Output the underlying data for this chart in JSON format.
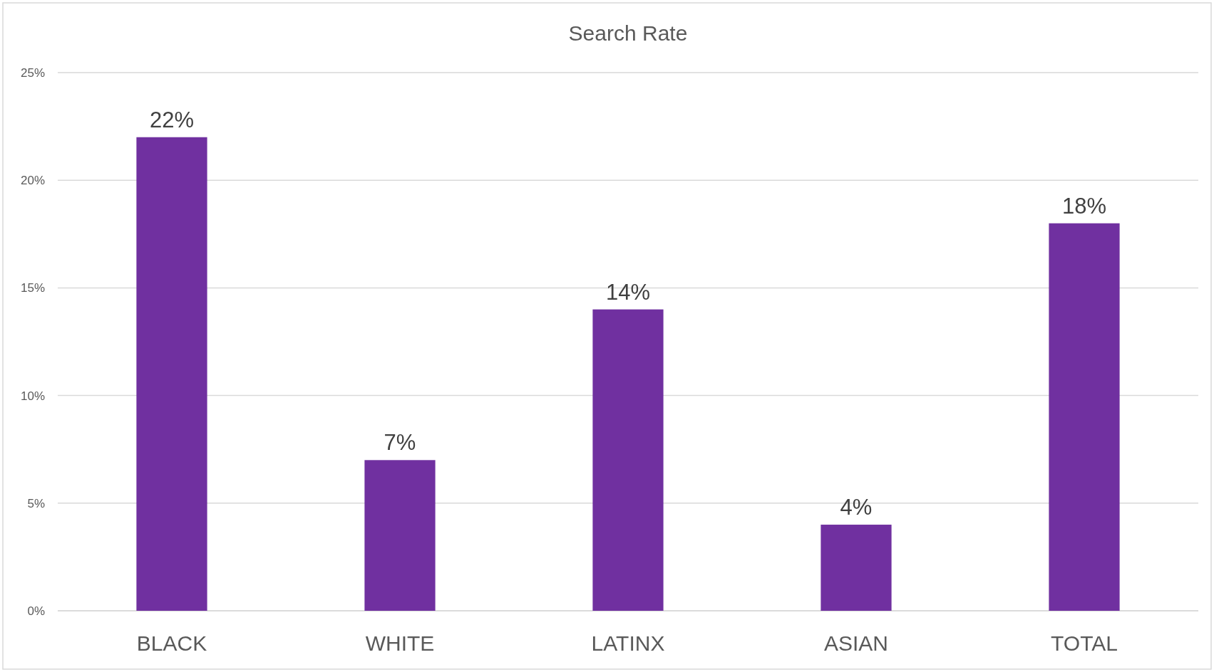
{
  "chart_data": {
    "type": "bar",
    "title": "Search Rate",
    "categories": [
      "BLACK",
      "WHITE",
      "LATINX",
      "ASIAN",
      "TOTAL"
    ],
    "values": [
      22,
      7,
      14,
      4,
      18
    ],
    "value_labels": [
      "22%",
      "7%",
      "14%",
      "4%",
      "18%"
    ],
    "color": "#7030a0",
    "ylim": [
      0,
      25
    ],
    "yticks": [
      {
        "value": 0,
        "label": "0%"
      },
      {
        "value": 5,
        "label": "5%"
      },
      {
        "value": 10,
        "label": "10%"
      },
      {
        "value": 15,
        "label": "15%"
      },
      {
        "value": 20,
        "label": "20%"
      },
      {
        "value": 25,
        "label": "25%"
      }
    ],
    "grid": true
  }
}
